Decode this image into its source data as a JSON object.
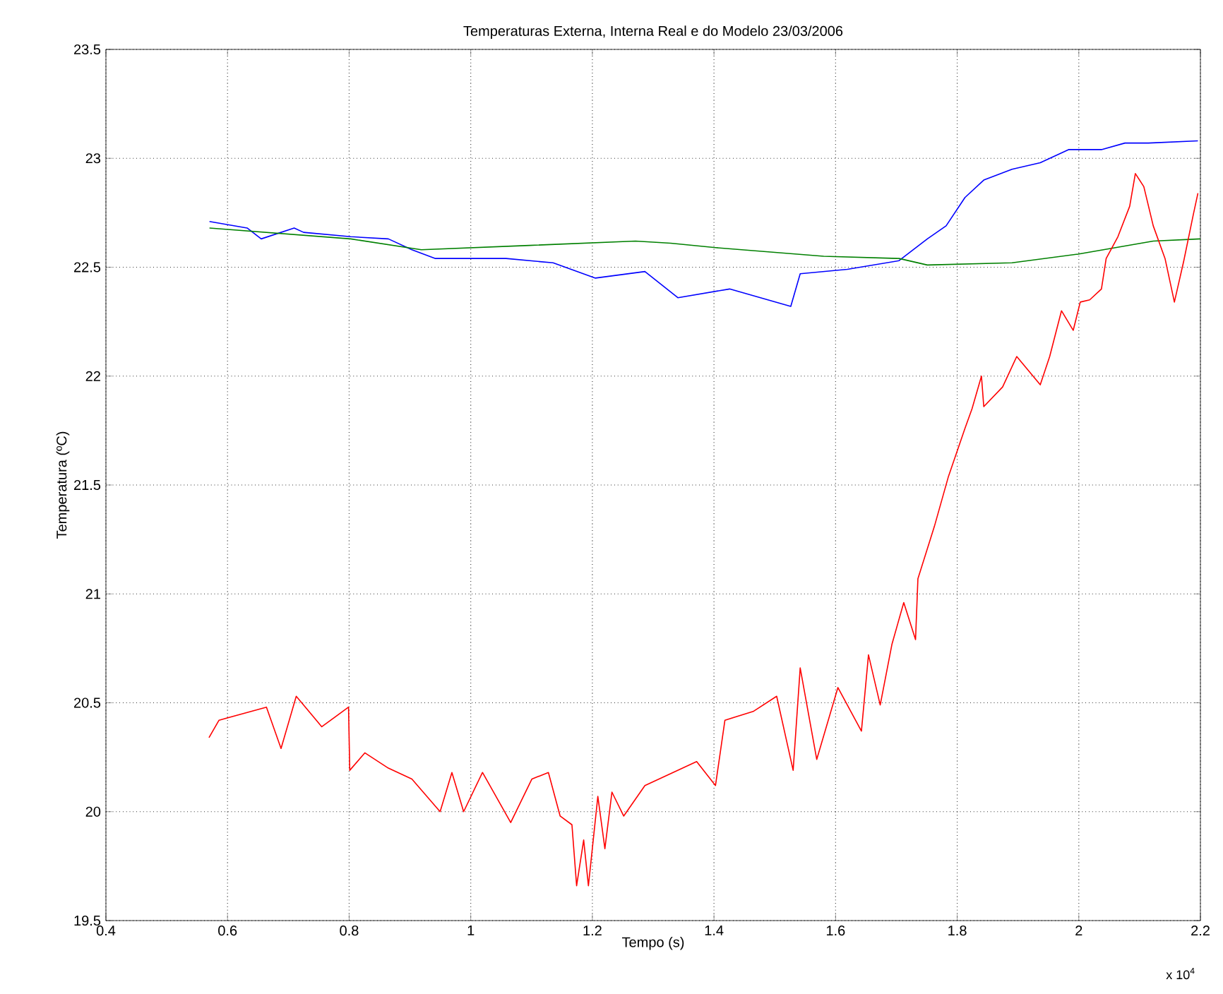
{
  "chart_data": {
    "type": "line",
    "title": "Temperaturas Externa, Interna Real e do Modelo 23/03/2006",
    "xlabel": "Tempo (s)",
    "ylabel": "Temperatura (ºC)",
    "annotations": [
      "x 10$^{4}$"
    ],
    "xlim": [
      0.4,
      2.2
    ],
    "ylim": [
      19.5,
      23.5
    ],
    "xticks": [
      0.4,
      0.6,
      0.8,
      1,
      1.2,
      1.4,
      1.6,
      1.8,
      2,
      2.2
    ],
    "yticks": [
      19.5,
      20,
      20.5,
      21,
      21.5,
      22,
      22.5,
      23,
      23.5
    ],
    "grid": true,
    "marker": "none",
    "line_style": "solid",
    "series": [
      {
        "color": "#0000ff",
        "x": [
          0.5703,
          0.6322,
          0.6554,
          0.7096,
          0.7251,
          0.8025,
          0.8645,
          0.9032,
          0.9419,
          1.058,
          1.1354,
          1.2051,
          1.2864,
          1.3406,
          1.4257,
          1.5263,
          1.5418,
          1.6193,
          1.7044,
          1.7509,
          1.7818,
          1.8128,
          1.8437,
          1.8902,
          1.9366,
          1.9831,
          2.0372,
          2.0759,
          2.1146,
          2.1959
        ],
        "values": [
          22.71,
          22.68,
          22.63,
          22.68,
          22.66,
          22.64,
          22.63,
          22.58,
          22.54,
          22.54,
          22.52,
          22.45,
          22.48,
          22.36,
          22.4,
          22.32,
          22.47,
          22.49,
          22.53,
          22.63,
          22.69,
          22.82,
          22.9,
          22.95,
          22.98,
          23.04,
          23.04,
          23.07,
          23.07,
          23.08
        ]
      },
      {
        "color": "#008000",
        "x": [
          0.5703,
          0.8025,
          0.9187,
          1.0967,
          1.2709,
          1.3289,
          1.4025,
          1.5805,
          1.7044,
          1.7509,
          1.8902,
          1.9986,
          2.1224,
          2.2
        ],
        "values": [
          22.68,
          22.63,
          22.58,
          22.6,
          22.62,
          22.61,
          22.59,
          22.55,
          22.54,
          22.51,
          22.52,
          22.56,
          22.62,
          22.63
        ]
      },
      {
        "color": "#ff0000",
        "x": [
          0.5695,
          0.586,
          0.664,
          0.688,
          0.713,
          0.755,
          0.799,
          0.801,
          0.8258,
          0.8645,
          0.9032,
          0.9496,
          0.969,
          0.9883,
          1.0193,
          1.0657,
          1.1006,
          1.1277,
          1.147,
          1.1664,
          1.1741,
          1.1857,
          1.1935,
          1.209,
          1.2206,
          1.2322,
          1.2515,
          1.2864,
          1.3715,
          1.4025,
          1.418,
          1.4644,
          1.5031,
          1.5302,
          1.5418,
          1.569,
          1.6038,
          1.6425,
          1.6541,
          1.6734,
          1.6928,
          1.7121,
          1.7315,
          1.7354,
          1.7625,
          1.7857,
          1.8128,
          1.8244,
          1.8399,
          1.8437,
          1.8747,
          1.8979,
          1.9366,
          1.9521,
          1.9715,
          1.9908,
          2.0024,
          2.0179,
          2.0372,
          2.045,
          2.0643,
          2.0837,
          2.093,
          2.1069,
          2.1224,
          2.1418,
          2.1572,
          2.1727,
          2.1882,
          2.1959
        ],
        "values": [
          20.34,
          20.42,
          20.48,
          20.29,
          20.53,
          20.39,
          20.48,
          20.19,
          20.27,
          20.2,
          20.15,
          20.0,
          20.18,
          20.0,
          20.18,
          19.95,
          20.15,
          20.18,
          19.98,
          19.94,
          19.66,
          19.87,
          19.66,
          20.07,
          19.83,
          20.09,
          19.98,
          20.12,
          20.23,
          20.12,
          20.42,
          20.46,
          20.53,
          20.19,
          20.66,
          20.24,
          20.57,
          20.37,
          20.72,
          20.49,
          20.77,
          20.96,
          20.79,
          21.07,
          21.31,
          21.54,
          21.76,
          21.85,
          22.0,
          21.86,
          21.95,
          22.09,
          21.96,
          22.09,
          22.3,
          22.21,
          22.34,
          22.35,
          22.4,
          22.54,
          22.64,
          22.78,
          22.93,
          22.87,
          22.69,
          22.54,
          22.34,
          22.53,
          22.74,
          22.84
        ]
      }
    ]
  }
}
